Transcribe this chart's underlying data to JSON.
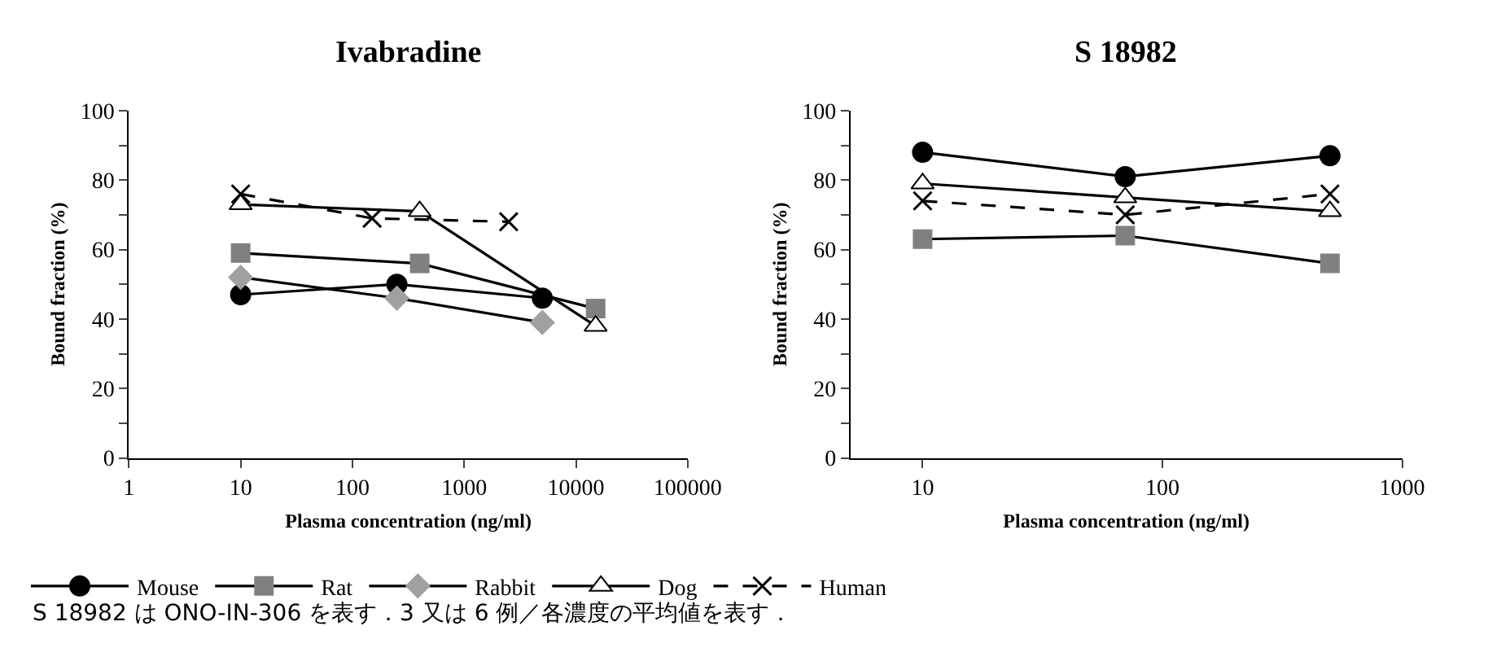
{
  "chart_data": [
    {
      "type": "line",
      "title": "Ivabradine",
      "xlabel": "Plasma concentration (ng/ml)",
      "ylabel": "Bound fraction (%)",
      "log": "x",
      "xlim": [
        1,
        100000
      ],
      "xticks": [
        1,
        10,
        100,
        1000,
        10000,
        100000
      ],
      "ylim": [
        0,
        100
      ],
      "yticks": [
        0,
        {
          "value": 10,
          "label": null
        },
        20,
        {
          "value": 30,
          "label": null
        },
        40,
        {
          "value": 50,
          "label": null
        },
        60,
        {
          "value": 70,
          "label": null
        },
        80,
        {
          "value": 90,
          "label": null
        },
        100
      ],
      "legend": "bottom",
      "annotations": [
        "S 18982 は ONO-IN-306 を表す．3 又は 6 例／各濃度の平均値を表す．"
      ],
      "series": [
        {
          "name": "Mouse",
          "color": "#000000",
          "marker": "circle",
          "line_style": "solid",
          "x": [
            10,
            250,
            5000
          ],
          "values": [
            47,
            50,
            46
          ]
        },
        {
          "name": "Rat",
          "color": "#808080",
          "marker": "square",
          "line_style": "solid",
          "x": [
            10,
            400,
            15000
          ],
          "values": [
            59,
            56,
            43
          ]
        },
        {
          "name": "Rabbit",
          "color": "#a0a0a0",
          "marker": "diamond",
          "line_style": "solid",
          "x": [
            10,
            250,
            5000
          ],
          "values": [
            52,
            46,
            39
          ]
        },
        {
          "name": "Dog",
          "color": "#ffffff",
          "marker": "triangle",
          "line_style": "solid",
          "x": [
            10,
            400,
            15000
          ],
          "values": [
            73,
            71,
            38
          ]
        },
        {
          "name": "Human",
          "color": "#000000",
          "marker": "cross",
          "line_style": "dashed",
          "x": [
            10,
            150,
            2500
          ],
          "values": [
            76,
            69,
            68
          ]
        }
      ]
    },
    {
      "type": "line",
      "title": "S 18982",
      "xlabel": "Plasma concentration (ng/ml)",
      "ylabel": "Bound fraction (%)",
      "log": "x",
      "xlim": [
        5,
        1000
      ],
      "xticks": [
        10,
        100,
        1000
      ],
      "ylim": [
        0,
        100
      ],
      "yticks": [
        0,
        {
          "value": 10,
          "label": null
        },
        20,
        {
          "value": 30,
          "label": null
        },
        40,
        {
          "value": 50,
          "label": null
        },
        60,
        {
          "value": 70,
          "label": null
        },
        80,
        {
          "value": 90,
          "label": null
        },
        100
      ],
      "series": [
        {
          "name": "Mouse",
          "color": "#000000",
          "marker": "circle",
          "line_style": "solid",
          "x": [
            10,
            70,
            500
          ],
          "values": [
            88,
            81,
            87
          ]
        },
        {
          "name": "Rat",
          "color": "#808080",
          "marker": "square",
          "line_style": "solid",
          "x": [
            10,
            70,
            500
          ],
          "values": [
            63,
            64,
            56
          ]
        },
        {
          "name": "Dog",
          "color": "#ffffff",
          "marker": "triangle",
          "line_style": "solid",
          "x": [
            10,
            70,
            500
          ],
          "values": [
            79,
            75,
            71
          ]
        },
        {
          "name": "Human",
          "color": "#000000",
          "marker": "cross",
          "line_style": "dashed",
          "x": [
            10,
            70,
            500
          ],
          "values": [
            74,
            70,
            76
          ]
        }
      ]
    }
  ]
}
